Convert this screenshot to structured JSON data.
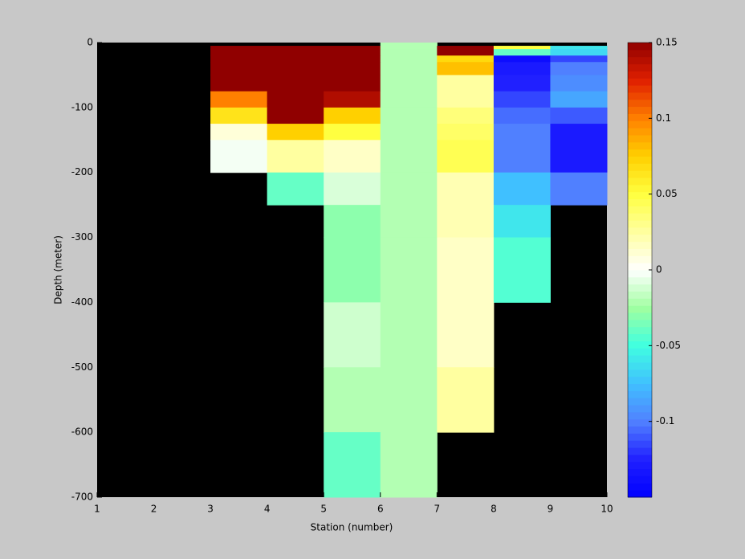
{
  "chart_data": {
    "type": "heatmap",
    "x_label": "Station (number)",
    "y_label": "Depth (meter)",
    "x_edges": [
      1,
      2,
      3,
      4,
      5,
      6,
      7,
      8,
      9,
      10
    ],
    "y_edges": [
      0,
      -5,
      -10,
      -20,
      -30,
      -50,
      -75,
      -100,
      -125,
      -150,
      -200,
      -250,
      -300,
      -400,
      -500,
      -600,
      -700
    ],
    "values": [
      [
        null,
        null,
        null,
        null,
        null,
        -0.02,
        null,
        null,
        null
      ],
      [
        null,
        null,
        0.15,
        0.15,
        0.15,
        -0.02,
        0.15,
        0.05,
        -0.06
      ],
      [
        null,
        null,
        0.15,
        0.15,
        0.15,
        -0.02,
        0.15,
        -0.04,
        -0.065
      ],
      [
        null,
        null,
        0.15,
        0.15,
        0.15,
        -0.02,
        0.07,
        -0.14,
        -0.115
      ],
      [
        null,
        null,
        0.15,
        0.15,
        0.15,
        -0.02,
        0.08,
        -0.13,
        -0.1
      ],
      [
        null,
        null,
        0.15,
        0.15,
        0.15,
        -0.02,
        0.025,
        -0.125,
        -0.095
      ],
      [
        null,
        null,
        0.1,
        0.15,
        0.14,
        -0.02,
        0.025,
        -0.115,
        -0.085
      ],
      [
        null,
        null,
        0.065,
        0.15,
        0.075,
        -0.02,
        0.035,
        -0.105,
        -0.11
      ],
      [
        null,
        null,
        0.01,
        0.075,
        0.05,
        -0.02,
        0.04,
        -0.1,
        -0.13
      ],
      [
        null,
        null,
        -0.003,
        0.025,
        0.015,
        -0.02,
        0.045,
        -0.1,
        -0.13
      ],
      [
        null,
        null,
        null,
        -0.04,
        -0.01,
        -0.02,
        0.02,
        -0.075,
        -0.1
      ],
      [
        null,
        null,
        null,
        null,
        -0.03,
        -0.02,
        0.02,
        -0.06,
        null
      ],
      [
        null,
        null,
        null,
        null,
        -0.03,
        -0.02,
        0.015,
        -0.045,
        null
      ],
      [
        null,
        null,
        null,
        null,
        -0.013,
        -0.02,
        0.015,
        null,
        null
      ],
      [
        null,
        null,
        null,
        null,
        -0.02,
        -0.02,
        0.025,
        null,
        null
      ],
      [
        null,
        null,
        null,
        null,
        -0.04,
        -0.02,
        null,
        null,
        null
      ]
    ],
    "xlim": [
      1,
      10
    ],
    "xticks": [
      1,
      2,
      3,
      4,
      5,
      6,
      7,
      8,
      9,
      10
    ],
    "ylim": [
      -700,
      0
    ],
    "yticks": [
      0,
      -100,
      -200,
      -300,
      -400,
      -500,
      -600,
      -700
    ],
    "clim": [
      -0.15,
      0.15
    ],
    "cticks": [
      0.15,
      0.1,
      0.05,
      0,
      -0.05,
      -0.1
    ],
    "colormap": [
      "#0000ff",
      "#2020ff",
      "#5080ff",
      "#40c0ff",
      "#40ffe0",
      "#a0ffa0",
      "#ffffff",
      "#ffffa0",
      "#ffff40",
      "#ffd000",
      "#ff8000",
      "#e02000",
      "#900000"
    ],
    "background": "#000000"
  }
}
